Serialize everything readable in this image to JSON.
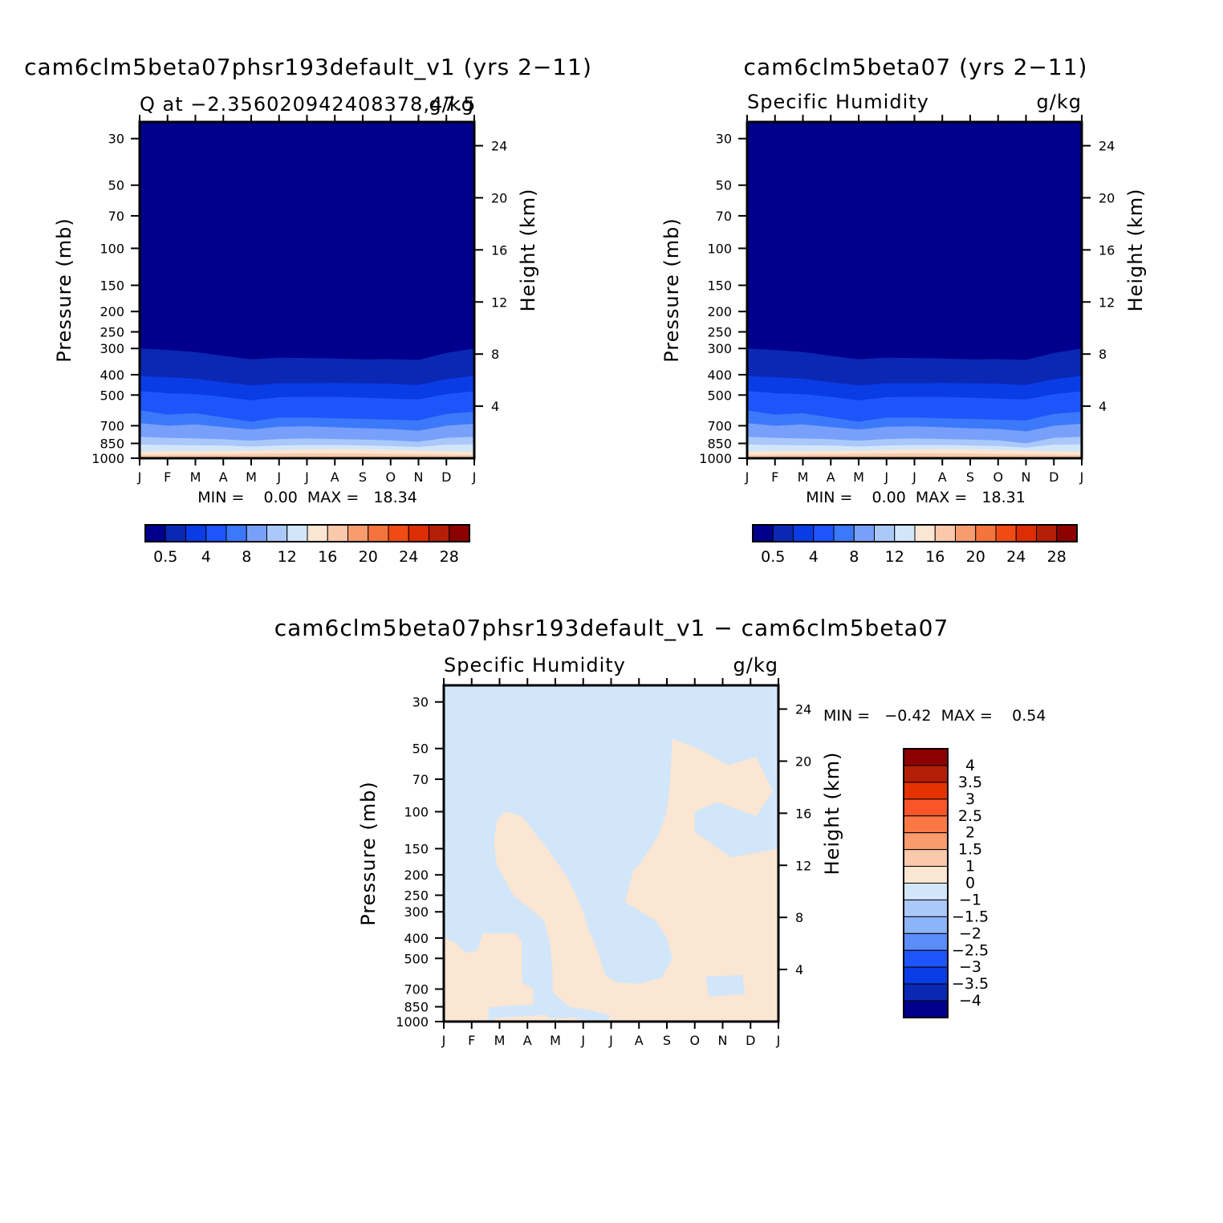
{
  "panels": [
    {
      "id": "top-left",
      "title": "cam6clm5beta07phsr193default_v1 (yrs 2−11)",
      "left_string": "Q at −2.356020942408378,47.5",
      "right_string": "g/kg",
      "min_max": "MIN =    0.00  MAX =   18.34"
    },
    {
      "id": "top-right",
      "title": "cam6clm5beta07 (yrs 2−11)",
      "left_string": "Specific Humidity",
      "right_string": "g/kg",
      "min_max": "MIN =    0.00  MAX =   18.31"
    },
    {
      "id": "bottom",
      "title": "cam6clm5beta07phsr193default_v1 − cam6clm5beta07",
      "left_string": "Specific Humidity",
      "right_string": "g/kg",
      "min_max": "MIN =   −0.42  MAX =    0.54"
    }
  ],
  "colorbars": {
    "abs": {
      "colors": [
        "#00008c",
        "#0a28b4",
        "#0a3ce6",
        "#1e55fa",
        "#3c78fa",
        "#78a0fa",
        "#aac8fa",
        "#d2e6fa",
        "#fae6d2",
        "#fac8aa",
        "#fa9b6e",
        "#f5733c",
        "#f04b14",
        "#dc2d05",
        "#b41e05",
        "#8c0000"
      ],
      "labels": [
        "0.5",
        "4",
        "8",
        "12",
        "16",
        "20",
        "24",
        "28"
      ]
    },
    "diff": {
      "colors_top_to_bottom": [
        "#8c0000",
        "#b41e05",
        "#e63200",
        "#fa5528",
        "#fa7846",
        "#fa9b6e",
        "#fac8aa",
        "#fae6d2",
        "#d2e6fa",
        "#aac8fa",
        "#8cb4fa",
        "#5a8cfa",
        "#1e55fa",
        "#0a3ce6",
        "#0a28b4",
        "#00008c"
      ],
      "labels": [
        "4",
        "3.5",
        "3",
        "2.5",
        "2",
        "1.5",
        "1",
        "0",
        "−1",
        "−1.5",
        "−2",
        "−2.5",
        "−3",
        "−3.5",
        "−4"
      ]
    }
  },
  "chart_data": [
    {
      "type": "heatmap",
      "title": "cam6clm5beta07phsr193default_v1 (yrs 2−11)",
      "subtitle": "Q at −2.356020942408378,47.5",
      "units": "g/kg",
      "xlabel": "",
      "ylabel": "Pressure (mb)",
      "ylabel_right": "Height (km)",
      "x_ticks": [
        "J",
        "F",
        "M",
        "A",
        "M",
        "J",
        "J",
        "A",
        "S",
        "O",
        "N",
        "D",
        "J"
      ],
      "y_ticks": [
        30,
        50,
        70,
        100,
        150,
        200,
        250,
        300,
        400,
        500,
        700,
        850,
        1000
      ],
      "y_right_ticks": [
        4,
        8,
        12,
        16,
        20,
        24
      ],
      "y_scale": "log",
      "ylim": [
        1000,
        25
      ],
      "months": [
        "J",
        "F",
        "M",
        "A",
        "M",
        "J",
        "J",
        "A",
        "S",
        "O",
        "N",
        "D",
        "J"
      ],
      "contour_pressure_mb": {
        "0.5": [
          300,
          305,
          312,
          325,
          338,
          332,
          333,
          335,
          338,
          337,
          340,
          315,
          300
        ],
        "2": [
          405,
          412,
          418,
          435,
          450,
          440,
          440,
          438,
          440,
          442,
          448,
          420,
          405
        ],
        "4": [
          478,
          490,
          495,
          510,
          530,
          512,
          510,
          510,
          515,
          520,
          525,
          495,
          480
        ],
        "6": [
          590,
          620,
          610,
          640,
          670,
          640,
          640,
          645,
          650,
          655,
          660,
          615,
          600
        ],
        "8": [
          680,
          700,
          690,
          710,
          730,
          708,
          705,
          712,
          720,
          725,
          740,
          700,
          685
        ],
        "10": [
          790,
          800,
          805,
          812,
          825,
          810,
          805,
          810,
          815,
          822,
          835,
          800,
          790
        ],
        "12": [
          860,
          865,
          868,
          870,
          880,
          870,
          865,
          865,
          870,
          875,
          885,
          862,
          860
        ],
        "14": [
          930,
          925,
          925,
          922,
          920,
          915,
          908,
          905,
          908,
          915,
          920,
          925,
          930
        ],
        "16": [
          965,
          962,
          960,
          958,
          955,
          952,
          950,
          950,
          952,
          955,
          958,
          962,
          965
        ]
      },
      "min": 0.0,
      "max": 18.34
    },
    {
      "type": "heatmap",
      "title": "cam6clm5beta07 (yrs 2−11)",
      "subtitle": "Specific Humidity",
      "units": "g/kg",
      "xlabel": "",
      "ylabel": "Pressure (mb)",
      "ylabel_right": "Height (km)",
      "x_ticks": [
        "J",
        "F",
        "M",
        "A",
        "M",
        "J",
        "J",
        "A",
        "S",
        "O",
        "N",
        "D",
        "J"
      ],
      "y_ticks": [
        30,
        50,
        70,
        100,
        150,
        200,
        250,
        300,
        400,
        500,
        700,
        850,
        1000
      ],
      "y_right_ticks": [
        4,
        8,
        12,
        16,
        20,
        24
      ],
      "y_scale": "log",
      "ylim": [
        1000,
        25
      ],
      "months": [
        "J",
        "F",
        "M",
        "A",
        "M",
        "J",
        "J",
        "A",
        "S",
        "O",
        "N",
        "D",
        "J"
      ],
      "contour_pressure_mb": {
        "0.5": [
          300,
          305,
          312,
          325,
          338,
          332,
          333,
          335,
          338,
          337,
          340,
          315,
          300
        ],
        "2": [
          405,
          412,
          418,
          435,
          450,
          440,
          440,
          438,
          440,
          442,
          448,
          420,
          405
        ],
        "4": [
          478,
          490,
          495,
          510,
          530,
          512,
          510,
          510,
          515,
          520,
          525,
          495,
          480
        ],
        "6": [
          590,
          620,
          610,
          640,
          670,
          640,
          640,
          645,
          650,
          655,
          660,
          615,
          600
        ],
        "8": [
          680,
          700,
          690,
          710,
          730,
          708,
          705,
          712,
          720,
          725,
          745,
          700,
          685
        ],
        "10": [
          790,
          800,
          805,
          812,
          825,
          810,
          805,
          810,
          815,
          822,
          850,
          800,
          790
        ],
        "12": [
          860,
          865,
          868,
          870,
          880,
          870,
          865,
          865,
          870,
          875,
          890,
          862,
          860
        ],
        "14": [
          930,
          925,
          925,
          922,
          920,
          915,
          908,
          905,
          908,
          915,
          920,
          925,
          930
        ],
        "16": [
          965,
          962,
          960,
          958,
          955,
          952,
          950,
          950,
          952,
          955,
          958,
          962,
          965
        ]
      },
      "min": 0.0,
      "max": 18.31
    },
    {
      "type": "heatmap",
      "title": "cam6clm5beta07phsr193default_v1 − cam6clm5beta07",
      "subtitle": "Specific Humidity",
      "units": "g/kg",
      "xlabel": "",
      "ylabel": "Pressure (mb)",
      "ylabel_right": "Height (km)",
      "x_ticks": [
        "J",
        "F",
        "M",
        "A",
        "M",
        "J",
        "J",
        "A",
        "S",
        "O",
        "N",
        "D",
        "J"
      ],
      "y_ticks": [
        30,
        50,
        70,
        100,
        150,
        200,
        250,
        300,
        400,
        500,
        700,
        850,
        1000
      ],
      "y_right_ticks": [
        4,
        8,
        12,
        16,
        20,
        24
      ],
      "y_scale": "log",
      "ylim": [
        1000,
        25
      ],
      "background_interval": "−1 to 0",
      "positive_interval": "0 to 1",
      "positive_regions": [
        [
          [
            0,
            400
          ],
          [
            0,
            1000
          ],
          [
            1.6,
            1000
          ],
          [
            1.6,
            860
          ],
          [
            2.3,
            840
          ],
          [
            3.2,
            830
          ],
          [
            3.2,
            700
          ],
          [
            2.8,
            650
          ],
          [
            2.8,
            420
          ],
          [
            2.6,
            380
          ],
          [
            1.4,
            380
          ],
          [
            1.2,
            460
          ],
          [
            0.8,
            470
          ],
          [
            0.4,
            420
          ]
        ],
        [
          [
            1.9,
            110
          ],
          [
            2.2,
            100
          ],
          [
            2.8,
            105
          ],
          [
            3.7,
            150
          ],
          [
            4.2,
            185
          ],
          [
            4.5,
            215
          ],
          [
            4.8,
            260
          ],
          [
            5.0,
            300
          ],
          [
            5.2,
            370
          ],
          [
            5.4,
            420
          ],
          [
            5.6,
            500
          ],
          [
            5.8,
            600
          ],
          [
            6.2,
            650
          ],
          [
            7.0,
            660
          ],
          [
            7.8,
            620
          ],
          [
            8.0,
            560
          ],
          [
            8.2,
            500
          ],
          [
            8.0,
            400
          ],
          [
            7.6,
            330
          ],
          [
            6.5,
            270
          ],
          [
            6.8,
            190
          ],
          [
            7.0,
            180
          ],
          [
            7.7,
            130
          ],
          [
            8.0,
            100
          ],
          [
            8.1,
            75
          ],
          [
            8.2,
            45
          ],
          [
            9.1,
            50
          ],
          [
            10.2,
            60
          ],
          [
            11.2,
            55
          ],
          [
            11.8,
            80
          ],
          [
            11.2,
            105
          ],
          [
            9.8,
            90
          ],
          [
            9.0,
            100
          ],
          [
            9.0,
            125
          ],
          [
            10.3,
            165
          ],
          [
            12.0,
            150
          ],
          [
            12.0,
            1000
          ],
          [
            1.8,
            1000
          ],
          [
            1.8,
            960
          ],
          [
            2.6,
            950
          ],
          [
            3.6,
            930
          ],
          [
            4.4,
            930
          ],
          [
            5.0,
            990
          ],
          [
            5.8,
            1000
          ],
          [
            6.0,
            935
          ],
          [
            5.2,
            880
          ],
          [
            4.5,
            850
          ],
          [
            3.9,
            720
          ],
          [
            3.9,
            560
          ],
          [
            3.8,
            420
          ],
          [
            3.6,
            330
          ],
          [
            2.5,
            250
          ],
          [
            1.9,
            180
          ],
          [
            1.8,
            140
          ]
        ]
      ],
      "blue_inclusions": [
        [
          [
            3.6,
            900
          ],
          [
            4.5,
            930
          ],
          [
            4.6,
            960
          ],
          [
            3.8,
            970
          ]
        ],
        [
          [
            6.2,
            360
          ],
          [
            6.5,
            300
          ],
          [
            6.9,
            380
          ],
          [
            6.7,
            480
          ],
          [
            6.4,
            500
          ]
        ],
        [
          [
            9.4,
            610
          ],
          [
            10.7,
            600
          ],
          [
            10.8,
            740
          ],
          [
            9.5,
            760
          ]
        ],
        [
          [
            1.7,
            280
          ],
          [
            2.0,
            275
          ],
          [
            2.4,
            290
          ],
          [
            2.0,
            300
          ]
        ],
        [
          [
            7.7,
            990
          ],
          [
            10.6,
            990
          ],
          [
            10.5,
            1000
          ],
          [
            7.7,
            1000
          ]
        ]
      ],
      "min": -0.42,
      "max": 0.54
    }
  ],
  "axis_text": {
    "ylabel": "Pressure (mb)",
    "ylabel_right": "Height (km)",
    "p_ticks": [
      "30",
      "50",
      "70",
      "100",
      "150",
      "200",
      "250",
      "300",
      "400",
      "500",
      "700",
      "850",
      "1000"
    ],
    "z_ticks": [
      "4",
      "8",
      "12",
      "16",
      "20",
      "24"
    ],
    "months": [
      "J",
      "F",
      "M",
      "A",
      "M",
      "J",
      "J",
      "A",
      "S",
      "O",
      "N",
      "D",
      "J"
    ]
  }
}
